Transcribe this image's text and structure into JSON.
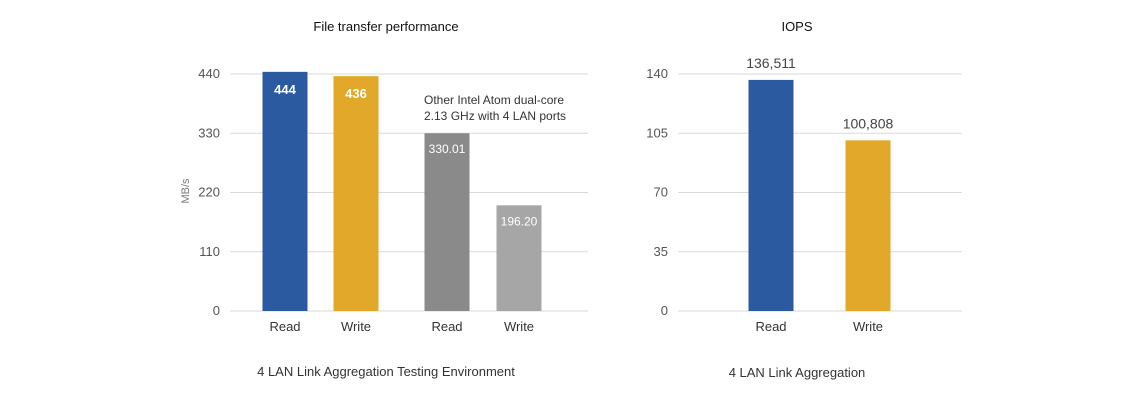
{
  "chart_data": [
    {
      "type": "bar",
      "title": "File transfer performance",
      "ylabel": "MB/s",
      "yticks": [
        "0",
        "110",
        "220",
        "330",
        "440"
      ],
      "ylim": [
        0,
        440
      ],
      "grid": true,
      "caption": "4 LAN Link Aggregation Testing Environment",
      "note_lines": [
        "Other Intel Atom dual-core",
        "2.13 GHz with 4 LAN ports"
      ],
      "categories": [
        "Read",
        "Write",
        "Read",
        "Write"
      ],
      "values": [
        444,
        436,
        330.01,
        196.2
      ],
      "labels": [
        "444",
        "436",
        "330.01",
        "196.20"
      ],
      "colors": [
        "#2b5aa0",
        "#e1a82a",
        "#8a8a8a",
        "#a6a6a6"
      ]
    },
    {
      "type": "bar",
      "title": "IOPS",
      "yticks": [
        "0",
        "35",
        "70",
        "105",
        "140"
      ],
      "ylim": [
        0,
        140
      ],
      "grid": true,
      "caption": "4 LAN Link Aggregation",
      "categories": [
        "Read",
        "Write"
      ],
      "values": [
        136.511,
        100.808
      ],
      "labels": [
        "136,511",
        "100,808"
      ],
      "colors": [
        "#2b5aa0",
        "#e1a82a"
      ]
    }
  ]
}
